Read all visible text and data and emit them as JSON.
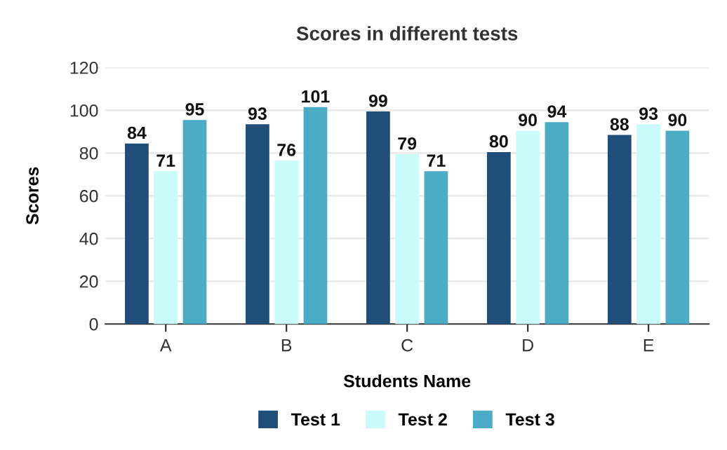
{
  "chart_data": {
    "type": "bar",
    "title": "Scores in different tests",
    "xlabel": "Students Name",
    "ylabel": "Scores",
    "categories": [
      "A",
      "B",
      "C",
      "D",
      "E"
    ],
    "series": [
      {
        "name": "Test 1",
        "color": "#1f4e79",
        "values": [
          84,
          93,
          99,
          80,
          88
        ]
      },
      {
        "name": "Test 2",
        "color": "#c9fbfa",
        "values": [
          71,
          76,
          79,
          90,
          93
        ]
      },
      {
        "name": "Test 3",
        "color": "#4bacc6",
        "values": [
          95,
          101,
          71,
          94,
          90
        ]
      }
    ],
    "ylim": [
      0,
      120
    ],
    "yticks": [
      0,
      20,
      40,
      60,
      80,
      100,
      120
    ],
    "grid": "y",
    "legend": "bottom",
    "data_labels": true
  }
}
